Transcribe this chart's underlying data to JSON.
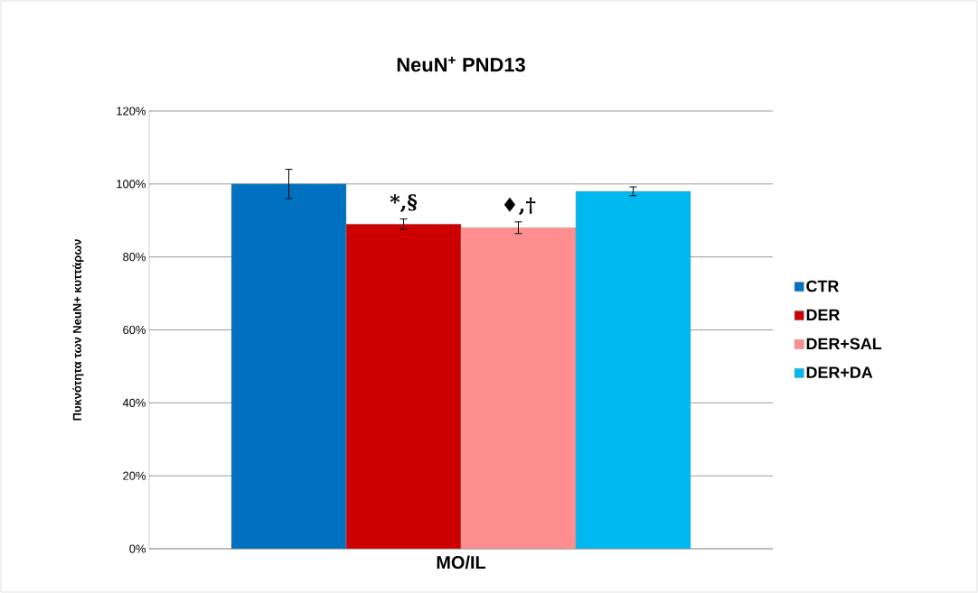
{
  "chart_data": {
    "type": "bar",
    "title": "NeuN$^{+}$ PND13",
    "ylabel": "Πυκνότητα των NeuN+ κυττάρων",
    "categories": [
      "MO/IL"
    ],
    "series": [
      {
        "name": "CTR",
        "color": "#0070c0",
        "values": [
          100
        ],
        "errors": [
          4
        ]
      },
      {
        "name": "DER",
        "color": "#cc0000",
        "values": [
          89
        ],
        "errors": [
          1.4
        ]
      },
      {
        "name": "DER+SAL",
        "color": "#ff8f8f",
        "values": [
          88
        ],
        "errors": [
          1.6
        ]
      },
      {
        "name": "DER+DA",
        "color": "#00b8f0",
        "values": [
          98
        ],
        "errors": [
          1.2
        ]
      }
    ],
    "annotations": [
      "*,§",
      "♦,†"
    ],
    "ylim": [
      0,
      120
    ],
    "yticks": [
      {
        "value": 0,
        "label": "0%"
      },
      {
        "value": 20,
        "label": "20%"
      },
      {
        "value": 40,
        "label": "40%"
      },
      {
        "value": 60,
        "label": "60%"
      },
      {
        "value": 80,
        "label": "80%"
      },
      {
        "value": 100,
        "label": "100%"
      },
      {
        "value": 120,
        "label": "120%"
      }
    ],
    "grid": "y",
    "legend": "right"
  }
}
